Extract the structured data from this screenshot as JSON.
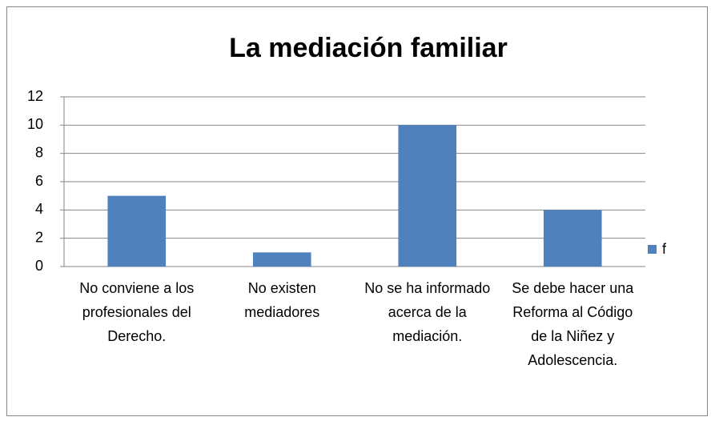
{
  "chart_data": {
    "type": "bar",
    "title": "La mediación familiar",
    "categories": [
      "No conviene a los profesionales del Derecho.",
      "No existen mediadores",
      "No se ha informado acerca de la mediación.",
      "Se debe hacer una Reforma al Código de la Niñez y Adolescencia."
    ],
    "series": [
      {
        "name": "f",
        "color": "#4f81bd",
        "values": [
          5,
          1,
          10,
          4
        ]
      }
    ],
    "ylim": [
      0,
      12
    ],
    "yticks": [
      0,
      2,
      4,
      6,
      8,
      10,
      12
    ],
    "grid": true,
    "legend": "right"
  }
}
